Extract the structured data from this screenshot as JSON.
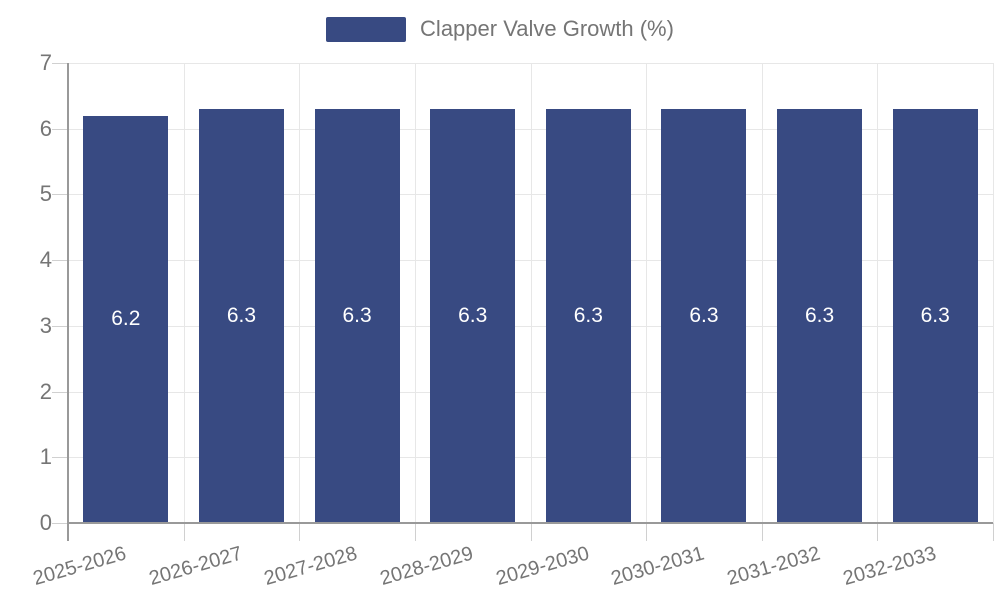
{
  "legend": {
    "label": "Clapper Valve Growth (%)"
  },
  "colors": {
    "bar": "#384a82",
    "grid_line": "#e7e7e7",
    "tick_line": "#d0d0d0",
    "axis_line": "#999999",
    "label_text": "#757575",
    "value_text": "#ffffff",
    "background": "#ffffff"
  },
  "chart_data": {
    "type": "bar",
    "title": "",
    "xlabel": "",
    "ylabel": "",
    "series_name": "Clapper Valve Growth (%)",
    "categories": [
      "2025-2026",
      "2026-2027",
      "2027-2028",
      "2028-2029",
      "2029-2030",
      "2030-2031",
      "2031-2032",
      "2032-2033"
    ],
    "values": [
      6.2,
      6.3,
      6.3,
      6.3,
      6.3,
      6.3,
      6.3,
      6.3
    ],
    "value_labels": [
      "6.2",
      "6.3",
      "6.3",
      "6.3",
      "6.3",
      "6.3",
      "6.3",
      "6.3"
    ],
    "ylim": [
      0,
      7
    ],
    "yticks": [
      0,
      1,
      2,
      3,
      4,
      5,
      6,
      7
    ],
    "grid": true,
    "legend_position": "top-center",
    "x_label_rotation_deg": -16,
    "value_label_position": "inside-center"
  }
}
